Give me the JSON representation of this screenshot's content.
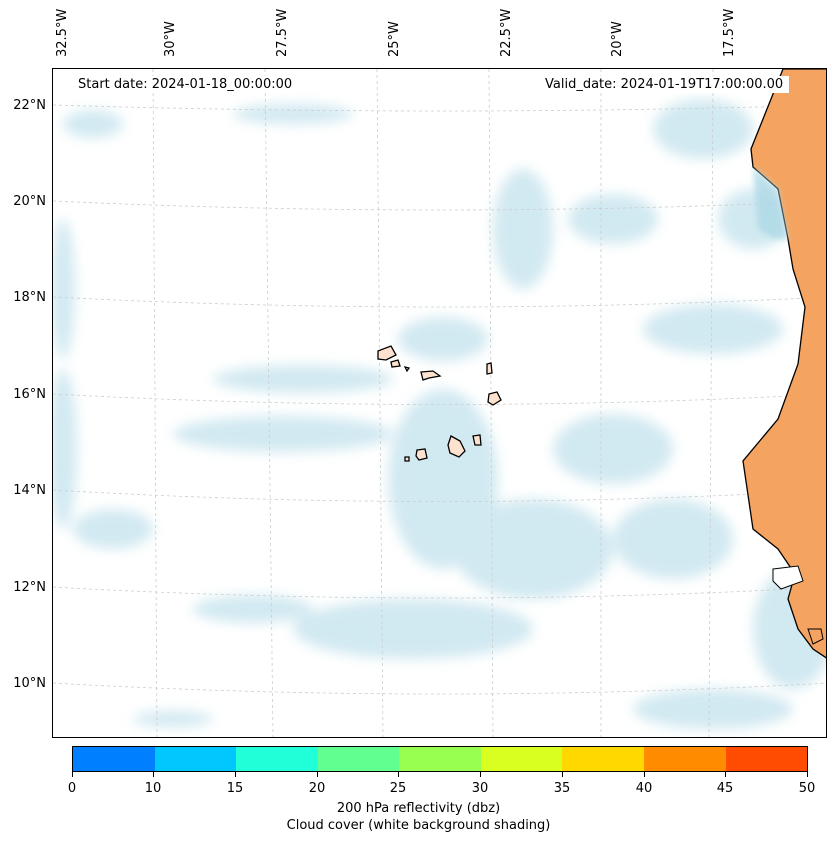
{
  "map": {
    "start_date": "Start date: 2024-01-18_00:00:00",
    "valid_date": "Valid_date: 2024-01-19T17:00:00.00",
    "longitude_labels": [
      "32.5°W",
      "30°W",
      "27.5°W",
      "25°W",
      "22.5°W",
      "20°W",
      "17.5°W"
    ],
    "latitude_labels": [
      "22°N",
      "20°N",
      "18°N",
      "16°N",
      "14°N",
      "12°N",
      "10°N"
    ],
    "region": "Cabo Verde and West African coast",
    "layers": [
      "cloud cover (white background shading)",
      "coastlines",
      "land fill",
      "gridlines"
    ],
    "colors": {
      "land": "#f4a460",
      "island_land": "#fde3cf",
      "cloud": "#add8e6",
      "coastline": "#000000",
      "gridline": "#cccccc"
    }
  },
  "colorbar": {
    "ticks": [
      "0",
      "10",
      "15",
      "20",
      "25",
      "30",
      "35",
      "40",
      "45",
      "50"
    ],
    "colors": [
      "#0080ff",
      "#00c8ff",
      "#20ffd8",
      "#60ff90",
      "#98ff50",
      "#d8ff20",
      "#ffd800",
      "#ff8c00",
      "#ff4c00"
    ],
    "label_line1": "200 hPa reflectivity (dbz)",
    "label_line2": "Cloud cover (white background shading)"
  }
}
